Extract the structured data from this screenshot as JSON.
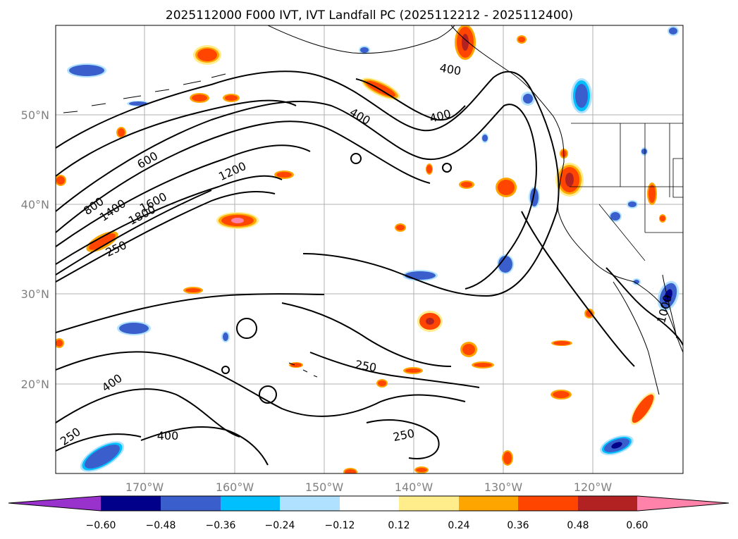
{
  "title": "2025112000 F000 IVT, IVT Landfall PC (2025112212 - 2025112400)",
  "map": {
    "lat_labels": [
      "50°N",
      "40°N",
      "30°N",
      "20°N"
    ],
    "lon_labels": [
      "170°W",
      "160°W",
      "150°W",
      "140°W",
      "130°W",
      "120°W"
    ],
    "gridlines": true
  },
  "contour_labels": [
    "400",
    "400",
    "400",
    "600",
    "800",
    "1200",
    "1400",
    "1600",
    "1800",
    "250",
    "250",
    "400",
    "400",
    "250",
    "250",
    "1000"
  ],
  "colorbar": {
    "tick_labels": [
      "−0.60",
      "−0.48",
      "−0.36",
      "−0.24",
      "−0.12",
      "0.12",
      "0.24",
      "0.36",
      "0.48",
      "0.60"
    ],
    "colors": [
      "#9932cc",
      "#00008b",
      "#3a5fcd",
      "#00bfff",
      "#b0e2ff",
      "#ffffff",
      "#ffec8b",
      "#ffa500",
      "#ff4500",
      "#b22222",
      "#ff82ab"
    ],
    "extend": "both"
  }
}
